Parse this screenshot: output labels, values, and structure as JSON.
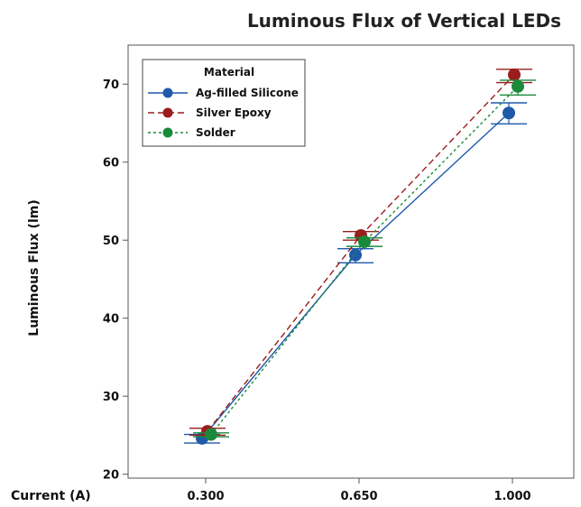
{
  "chart_data": {
    "type": "line",
    "title": "Luminous Flux of Vertical LEDs",
    "xlabel": "Current (A)",
    "ylabel": "Luminous Flux (lm)",
    "categories": [
      "0.300",
      "0.650",
      "1.000"
    ],
    "yticks": [
      20,
      30,
      40,
      50,
      60,
      70
    ],
    "ylim": [
      19.5,
      75
    ],
    "grid": false,
    "legend": {
      "title": "Material",
      "position": "top-left"
    },
    "series": [
      {
        "name": "Ag-filled Silicone",
        "color": "#1F5AAA",
        "line_style": "solid",
        "marker": "circle",
        "values": [
          24.6,
          48.1,
          66.3
        ],
        "error_low": [
          24.0,
          47.1,
          64.9
        ],
        "error_high": [
          25.1,
          48.9,
          67.6
        ]
      },
      {
        "name": "Silver Epoxy",
        "color": "#9B1D1D",
        "line_style": "dashed",
        "marker": "circle",
        "values": [
          25.5,
          50.6,
          71.2
        ],
        "error_low": [
          25.0,
          50.0,
          70.2
        ],
        "error_high": [
          25.9,
          51.1,
          71.9
        ]
      },
      {
        "name": "Solder",
        "color": "#1A8A3A",
        "line_style": "dotted",
        "marker": "circle",
        "values": [
          25.1,
          49.8,
          69.7
        ],
        "error_low": [
          24.8,
          49.2,
          68.6
        ],
        "error_high": [
          25.3,
          50.3,
          70.5
        ]
      }
    ]
  }
}
